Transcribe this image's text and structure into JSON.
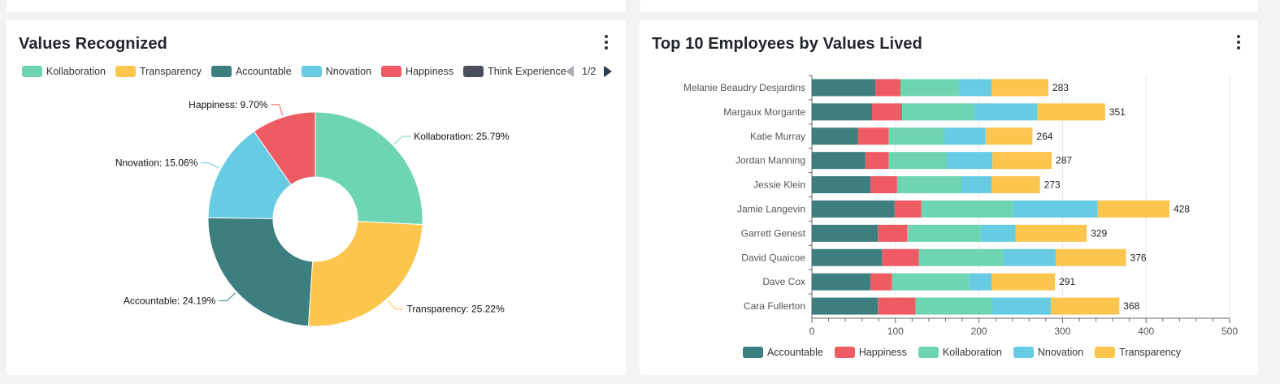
{
  "pie_card": {
    "title": "Values Recognized",
    "pager": "1/2"
  },
  "bar_card": {
    "title": "Top 10 Employees by Values Lived"
  },
  "colors": {
    "Kollaboration": "#6dd5b1",
    "Transparency": "#fcc54d",
    "Accountable": "#3d7f7f",
    "Nnovation": "#66cbe3",
    "Happiness": "#ef5b62",
    "Think Experience": "#4a4f5e",
    "Extra": "#f58442"
  },
  "chart_data": [
    {
      "type": "pie",
      "title": "Values Recognized",
      "donut": true,
      "legend_placement": "top",
      "legend": [
        "Kollaboration",
        "Transparency",
        "Accountable",
        "Nnovation",
        "Happiness",
        "Think Experience"
      ],
      "slices": [
        {
          "name": "Kollaboration",
          "value": 25.79,
          "label": "Kollaboration: 25.79%"
        },
        {
          "name": "Transparency",
          "value": 25.22,
          "label": "Transparency: 25.22%"
        },
        {
          "name": "Accountable",
          "value": 24.19,
          "label": "Accountable: 24.19%"
        },
        {
          "name": "Nnovation",
          "value": 15.06,
          "label": "Nnovation: 15.06%"
        },
        {
          "name": "Happiness",
          "value": 9.7,
          "label": "Happiness: 9.70%"
        }
      ]
    },
    {
      "type": "bar",
      "orientation": "horizontal",
      "stacked": true,
      "title": "Top 10 Employees by Values Lived",
      "legend_placement": "bottom",
      "xlim": [
        0,
        500
      ],
      "xticks": [
        0,
        100,
        200,
        300,
        400,
        500
      ],
      "grid": true,
      "categories": [
        "Melanie Beaudry Desjardins",
        "Margaux Morgante",
        "Katie Murray",
        "Jordan Manning",
        "Jessie Klein",
        "Jamie Langevin",
        "Garrett Genest",
        "David Quaicoe",
        "Dave Cox",
        "Cara Fullerton"
      ],
      "totals": [
        283,
        351,
        264,
        287,
        273,
        428,
        329,
        376,
        291,
        368
      ],
      "series": [
        {
          "name": "Accountable",
          "values": [
            76,
            72,
            55,
            64,
            70,
            99,
            79,
            84,
            70,
            79
          ]
        },
        {
          "name": "Happiness",
          "values": [
            30,
            36,
            37,
            28,
            32,
            32,
            35,
            44,
            26,
            45
          ]
        },
        {
          "name": "Kollaboration",
          "values": [
            70,
            86,
            67,
            69,
            77,
            110,
            88,
            101,
            92,
            92
          ]
        },
        {
          "name": "Nnovation",
          "values": [
            39,
            76,
            49,
            55,
            36,
            101,
            42,
            63,
            27,
            70
          ]
        },
        {
          "name": "Transparency",
          "values": [
            68,
            81,
            56,
            71,
            58,
            86,
            85,
            84,
            76,
            82
          ]
        }
      ]
    }
  ]
}
